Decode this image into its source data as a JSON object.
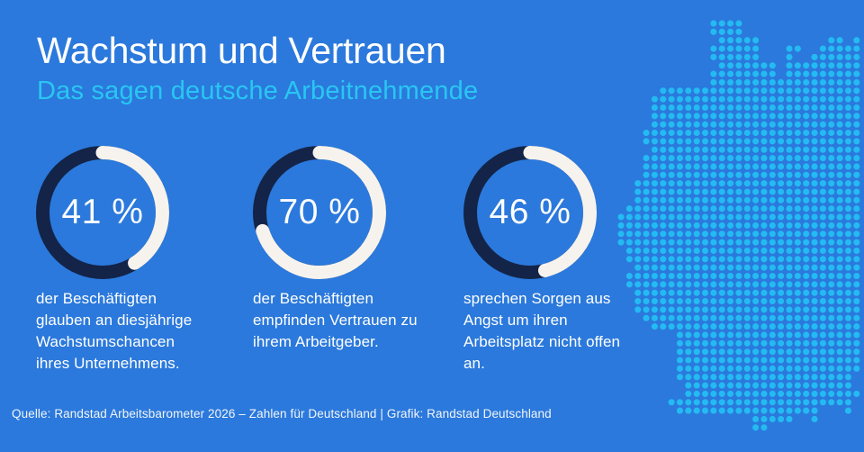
{
  "header": {
    "title": "Wachstum und Vertrauen",
    "subtitle": "Das sagen deutsche Arbeitnehmende"
  },
  "stats": [
    {
      "value_label": "41 %",
      "pct": 41,
      "description": "der Beschäftigten\nglauben an diesjährige\nWachstumschancen\nihres Unternehmens."
    },
    {
      "value_label": "70 %",
      "pct": 70,
      "description": "der Beschäftigten\nempfinden Vertrauen zu\nihrem Arbeitgeber."
    },
    {
      "value_label": "46 %",
      "pct": 46,
      "description": "sprechen Sorgen aus\nAngst um ihren\nArbeitsplatz nicht offen\nan."
    }
  ],
  "footer": {
    "source": "Quelle: Randstad Arbeitsbarometer 2026 – Zahlen für Deutschland | Grafik: Randstad Deutschland"
  },
  "colors": {
    "background": "#2b79dc",
    "ring_navy": "#132448",
    "arc_white": "#f6f3ee",
    "subtitle_cyan": "#29c6f2",
    "map_dot_cyan": "#24baf2",
    "text_white": "#ffffff"
  },
  "map": {
    "name": "germany-dot-map",
    "dot_color": "#24baf2",
    "pattern": [
      "...........oooo..............",
      "...........oooo..............",
      "............ooooo........oo.o",
      "...........oooooo...oo..ooooo",
      "...........oooooo...o..oooooo",
      "............ooooooo.ooooooooo",
      "...........oooooooo.ooooooooo",
      "...........oooooooooooooooooo",
      ".....oooooooooooooooooooooooo",
      "....ooooooooooooooooooooooooo",
      "....ooooooooooooooooooooooooo",
      "....ooooooooooooooooooooooooo",
      "....ooooooooooooooooooooooooo",
      "...oooooooooooooooooooooooooo",
      "...oooooooooooooooooooooooooo",
      "....ooooooooooooooooooooooooo",
      "...oooooooooooooooooooooooooo",
      "...oooooooooooooooooooooooooo",
      "...oooooooooooooooooooooooooo",
      "..ooooooooooooooooooooooooooo",
      "..ooooooooooooooooooooooooooo",
      "..ooooooooooooooooooooooooooo",
      ".oooooooooooooooooooooooooooo",
      "ooooooooooooooooooooooooooooo",
      "ooooooooooooooooooooooooooooo",
      "ooooooooooooooooooooooooooooo",
      "ooooooooooooooooooooooooooooo",
      ".oooooooooooooooooooooooooooo",
      ".oooooooooooooooooooooooooooo",
      "..ooooooooooooooooooooooooooo",
      ".oooooooooooooooooooooooooooo",
      ".oooooooooooooooooooooooooooo",
      "..ooooooooooooooooooooooooooo",
      "..ooooooooooooooooooooooooooo",
      "..ooooooooooooooooooooooooooo",
      "...oooooooooooooooooooooooooo",
      "....ooooooooooooooooooooooooo",
      ".......oooooooooooooooooooooo",
      ".......oooooooooooooooooooooo",
      ".......oooooooooooooooooooooo",
      ".......oooooooooooooooooooooo",
      ".......oooooooooooooooooooooo",
      ".......ooooooooooooooooooooo.",
      "........oooooooooooooooooooo.",
      "........ooooooooooooooooooooo",
      "......oooooooooooooooooooooo.",
      ".......ooooooooooooooooo...o.",
      "................ooooo..o.....",
      "................oo..........."
    ]
  },
  "chart_data": {
    "type": "pie",
    "subtype": "donut-progress",
    "title": "Wachstum und Vertrauen",
    "subtitle": "Das sagen deutsche Arbeitnehmende",
    "unit": "%",
    "legend_position": "below-each-donut",
    "series": [
      {
        "value": 41,
        "display": "41 %",
        "label": "der Beschäftigten glauben an diesjährige Wachstumschancen ihres Unternehmens."
      },
      {
        "value": 70,
        "display": "70 %",
        "label": "der Beschäftigten empfinden Vertrauen zu ihrem Arbeitgeber."
      },
      {
        "value": 46,
        "display": "46 %",
        "label": "sprechen Sorgen aus Angst um ihren Arbeitsplatz nicht offen an."
      }
    ],
    "colors": {
      "filled_arc": "#f6f3ee",
      "remainder_arc": "#132448"
    }
  }
}
